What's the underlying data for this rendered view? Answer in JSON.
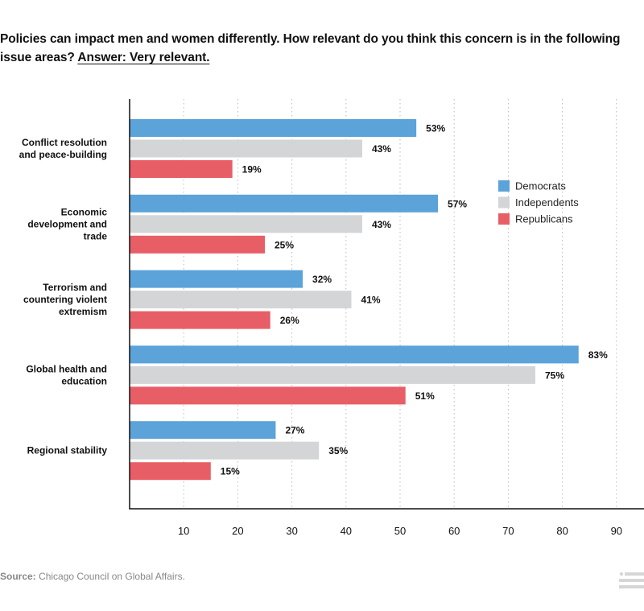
{
  "title": {
    "text": "Policies can impact men and women differently. How relevant do you think this concern is in the following issue areas?",
    "answer": "Answer: Very relevant."
  },
  "source": {
    "label": "Source:",
    "text": "Chicago Council on Global Affairs."
  },
  "icons": {
    "menu": "menu-list-icon"
  },
  "colors": {
    "Democrats": "#5ba3d9",
    "Independents": "#d4d5d7",
    "Republicans": "#e85e66",
    "axis": "#111111",
    "grid": "#bbbbbb"
  },
  "chart_data": {
    "type": "bar",
    "orientation": "horizontal",
    "title": "Policies can impact men and women differently. How relevant do you think this concern is in the following issue areas? Answer: Very relevant.",
    "categories": [
      [
        "Conflict resolution",
        "and peace-building"
      ],
      [
        "Economic",
        "development and",
        "trade"
      ],
      [
        "Terrorism and",
        "countering violent",
        "extremism"
      ],
      [
        "Global health and",
        "education"
      ],
      [
        "Regional stability"
      ]
    ],
    "series": [
      {
        "name": "Democrats",
        "values": [
          53,
          57,
          32,
          83,
          27
        ]
      },
      {
        "name": "Independents",
        "values": [
          43,
          43,
          41,
          75,
          35
        ]
      },
      {
        "name": "Republicans",
        "values": [
          19,
          25,
          26,
          51,
          15
        ]
      }
    ],
    "value_suffix": "%",
    "xlabel": "",
    "ylabel": "",
    "xlim": [
      0,
      95
    ],
    "xticks": [
      10,
      20,
      30,
      40,
      50,
      60,
      70,
      80,
      90
    ],
    "grid": true,
    "legend_position": "right-upper"
  }
}
